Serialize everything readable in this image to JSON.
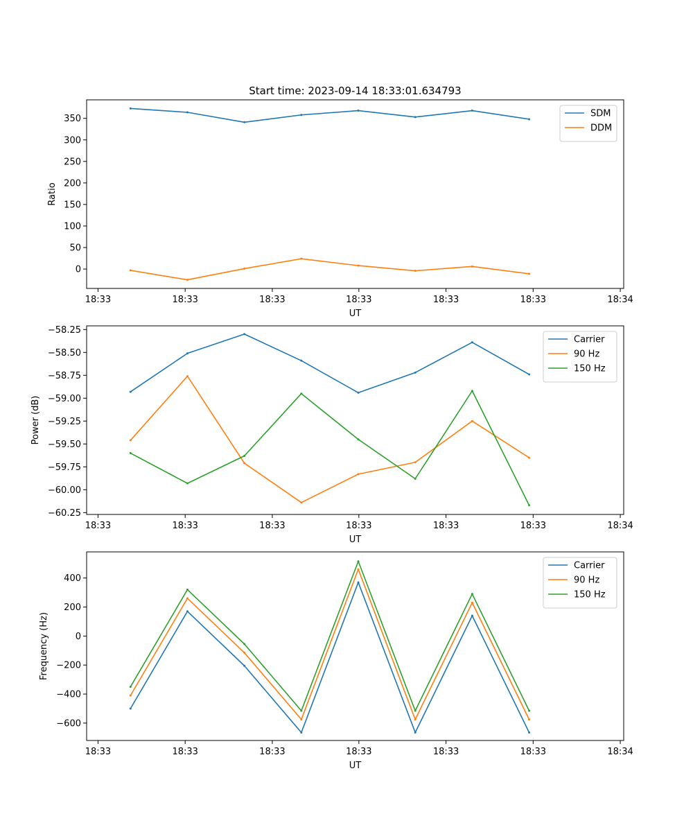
{
  "chart_data": [
    {
      "type": "line",
      "title": "Start time: 2023-09-14 18:33:01.634793",
      "xlabel": "UT",
      "ylabel": "Ratio",
      "ylim": [
        -45,
        393
      ],
      "yticks": [
        0,
        50,
        100,
        150,
        200,
        250,
        300,
        350
      ],
      "xlim": [
        -0.77,
        8.66
      ],
      "xticks": [
        -0.57,
        0.96,
        2.49,
        4.01,
        5.54,
        7.07,
        8.6
      ],
      "xtick_labels": [
        "18:33",
        "18:33",
        "18:33",
        "18:33",
        "18:33",
        "18:33",
        "18:34"
      ],
      "legend_position": "top-right",
      "x": [
        0,
        1,
        2,
        3,
        4,
        5,
        6,
        7
      ],
      "series": [
        {
          "name": "SDM",
          "color": "#1f77b4",
          "values": [
            373,
            364,
            341,
            358,
            368,
            353,
            368,
            348
          ]
        },
        {
          "name": "DDM",
          "color": "#ff7f0e",
          "values": [
            -3,
            -25,
            1,
            24,
            8,
            -4,
            6,
            -11
          ]
        }
      ]
    },
    {
      "type": "line",
      "title": "",
      "xlabel": "UT",
      "ylabel": "Power (dB)",
      "ylim": [
        -60.27,
        -58.21
      ],
      "yticks": [
        -60.25,
        -60.0,
        -59.75,
        -59.5,
        -59.25,
        -59.0,
        -58.75,
        -58.5,
        -58.25
      ],
      "ytick_labels": [
        "−60.25",
        "−60.00",
        "−59.75",
        "−59.50",
        "−59.25",
        "−59.00",
        "−58.75",
        "−58.50",
        "−58.25"
      ],
      "xlim": [
        -0.77,
        8.66
      ],
      "xticks": [
        -0.57,
        0.96,
        2.49,
        4.01,
        5.54,
        7.07,
        8.6
      ],
      "xtick_labels": [
        "18:33",
        "18:33",
        "18:33",
        "18:33",
        "18:33",
        "18:33",
        "18:34"
      ],
      "legend_position": "top-right",
      "x": [
        0,
        1,
        2,
        3,
        4,
        5,
        6,
        7
      ],
      "series": [
        {
          "name": "Carrier",
          "color": "#1f77b4",
          "values": [
            -58.93,
            -58.51,
            -58.3,
            -58.59,
            -58.94,
            -58.72,
            -58.39,
            -58.74
          ]
        },
        {
          "name": "90 Hz",
          "color": "#ff7f0e",
          "values": [
            -59.46,
            -58.76,
            -59.71,
            -60.14,
            -59.83,
            -59.7,
            -59.25,
            -59.65
          ]
        },
        {
          "name": "150 Hz",
          "color": "#2ca02c",
          "values": [
            -59.6,
            -59.93,
            -59.63,
            -58.95,
            -59.45,
            -59.88,
            -58.92,
            -60.17
          ]
        }
      ]
    },
    {
      "type": "line",
      "title": "",
      "xlabel": "UT",
      "ylabel": "Frequency (Hz)",
      "ylim": [
        -720,
        580
      ],
      "yticks": [
        -600,
        -400,
        -200,
        0,
        200,
        400
      ],
      "ytick_labels": [
        "−600",
        "−400",
        "−200",
        "0",
        "200",
        "400"
      ],
      "xlim": [
        -0.77,
        8.66
      ],
      "xticks": [
        -0.57,
        0.96,
        2.49,
        4.01,
        5.54,
        7.07,
        8.6
      ],
      "xtick_labels": [
        "18:33",
        "18:33",
        "18:33",
        "18:33",
        "18:33",
        "18:33",
        "18:34"
      ],
      "legend_position": "top-right",
      "x": [
        0,
        1,
        2,
        3,
        4,
        5,
        6,
        7
      ],
      "series": [
        {
          "name": "Carrier",
          "color": "#1f77b4",
          "values": [
            -500,
            170,
            -205,
            -665,
            370,
            -665,
            140,
            -665
          ]
        },
        {
          "name": "90 Hz",
          "color": "#ff7f0e",
          "values": [
            -410,
            260,
            -115,
            -575,
            460,
            -575,
            230,
            -575
          ]
        },
        {
          "name": "150 Hz",
          "color": "#2ca02c",
          "values": [
            -350,
            320,
            -55,
            -515,
            515,
            -515,
            290,
            -515
          ]
        }
      ]
    }
  ]
}
